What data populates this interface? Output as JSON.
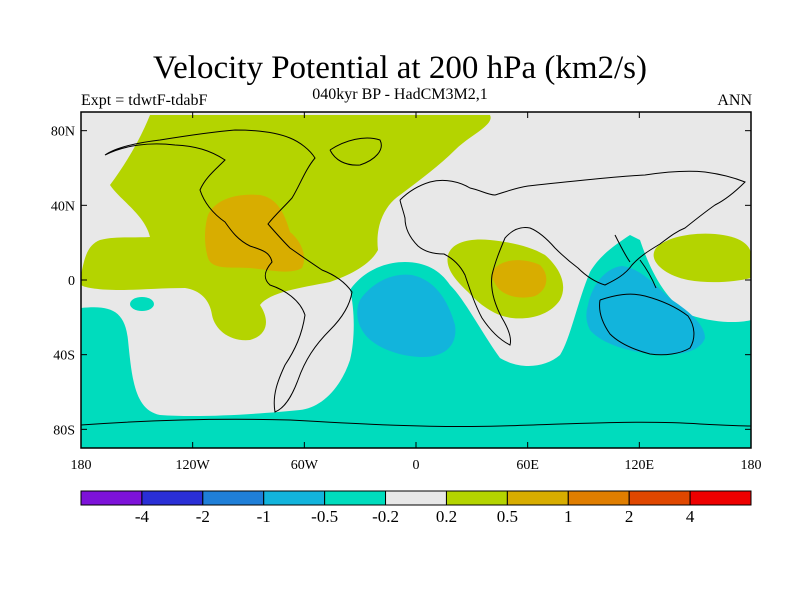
{
  "title": "Velocity Potential at 200 hPa (km2/s)",
  "subtitle": "040kyr BP - HadCM3M2,1",
  "left_label": "Expt = tdwtF-tdabF",
  "right_label": "ANN",
  "map": {
    "projection": "cylindrical equidistant",
    "lon_range": [
      -180,
      180
    ],
    "lat_range": [
      -90,
      90
    ],
    "x_ticks": [
      {
        "lon": -180,
        "label": "180"
      },
      {
        "lon": -120,
        "label": "120W"
      },
      {
        "lon": -60,
        "label": "60W"
      },
      {
        "lon": 0,
        "label": "0"
      },
      {
        "lon": 60,
        "label": "60E"
      },
      {
        "lon": 120,
        "label": "120E"
      },
      {
        "lon": 180,
        "label": "180"
      }
    ],
    "y_ticks": [
      {
        "lat": 80,
        "label": "80N"
      },
      {
        "lat": 40,
        "label": "40N"
      },
      {
        "lat": 0,
        "label": "0"
      },
      {
        "lat": -40,
        "label": "40S"
      },
      {
        "lat": -80,
        "label": "80S"
      }
    ]
  },
  "colorbar": {
    "colors": [
      "#7d12d9",
      "#2a2fd6",
      "#1f7fd8",
      "#12b4dc",
      "#00dcbd",
      "#e8e8e8",
      "#b4d400",
      "#d8ad00",
      "#e07e00",
      "#e04700",
      "#ee0000"
    ],
    "labels": [
      "-4",
      "-2",
      "-1",
      "-0.5",
      "-0.2",
      "0.2",
      "0.5",
      "1",
      "2",
      "4"
    ]
  }
}
